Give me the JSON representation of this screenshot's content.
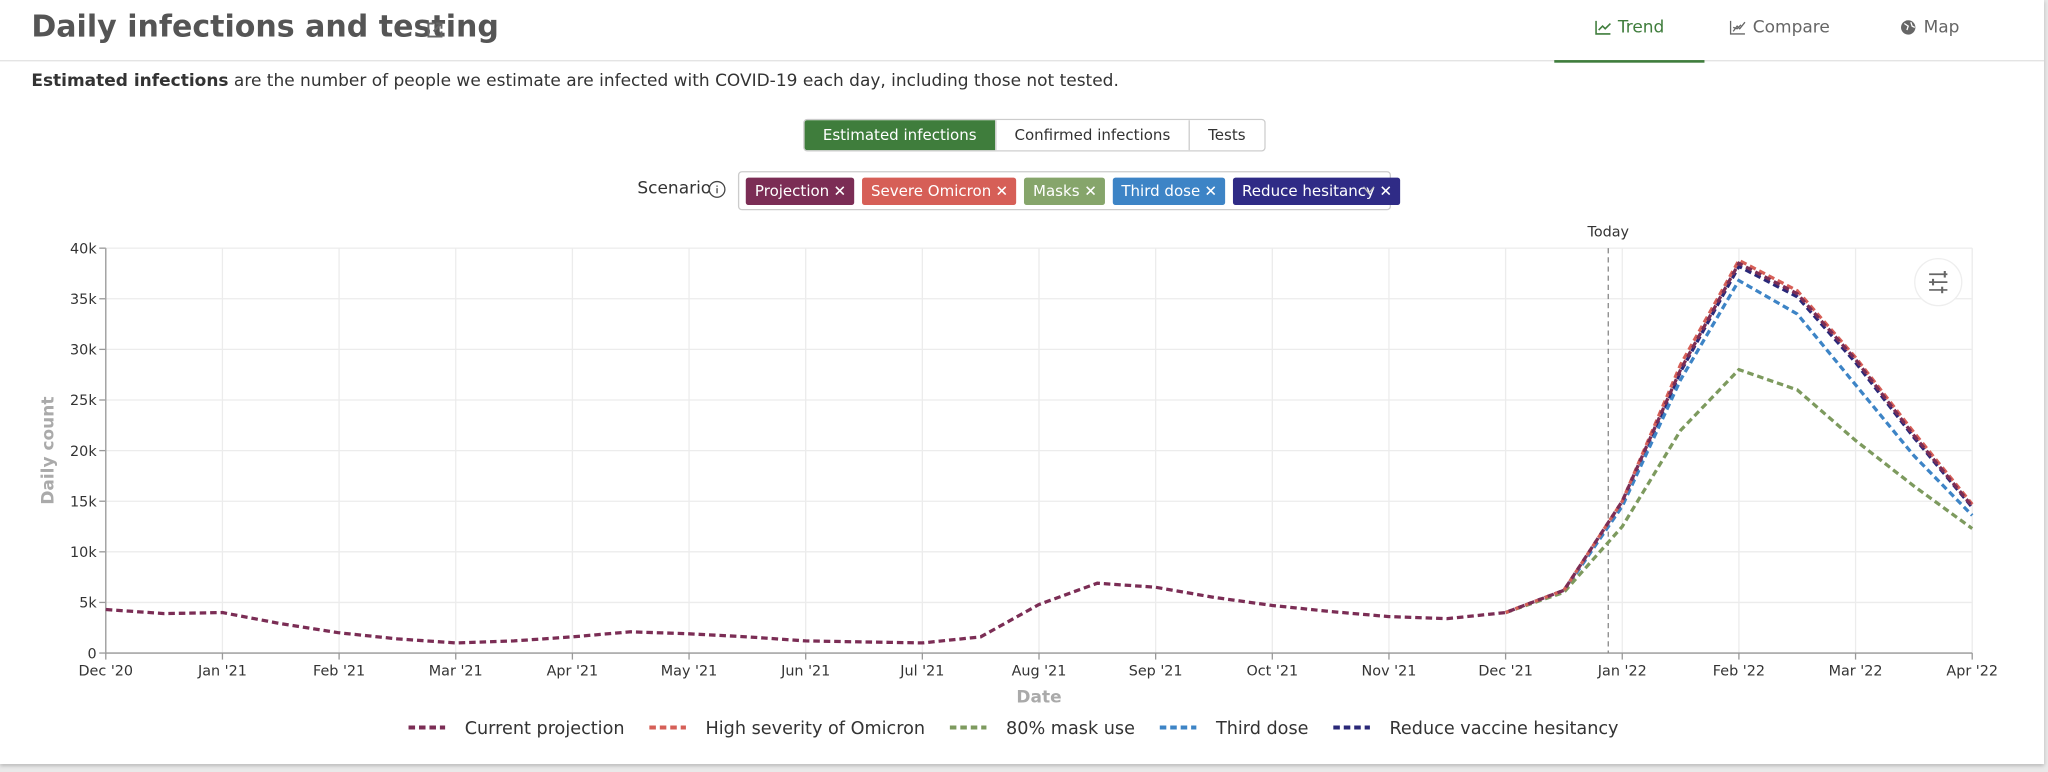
{
  "header": {
    "title": "Daily infections and testing",
    "tabs": [
      "Trend",
      "Compare",
      "Map"
    ],
    "active_tab": 0
  },
  "description": {
    "bold": "Estimated infections",
    "text": "are the number of people we estimate are infected with COVID-19 each day, including those not tested."
  },
  "metric_buttons": {
    "options": [
      "Estimated infections",
      "Confirmed infections",
      "Tests"
    ],
    "active": 0
  },
  "scenario": {
    "label": "Scenario",
    "chips": [
      {
        "label": "Projection",
        "color": "#7b2d55"
      },
      {
        "label": "Severe Omicron",
        "color": "#d65f57"
      },
      {
        "label": "Masks",
        "color": "#86a56b"
      },
      {
        "label": "Third dose",
        "color": "#3d84c6"
      },
      {
        "label": "Reduce hesitancy",
        "color": "#2f2b86"
      }
    ]
  },
  "chart_data": {
    "type": "line",
    "x_label": "Date",
    "y_label": "Daily count",
    "grid": true,
    "line_style": "dashed",
    "x": [
      0,
      0.5,
      1,
      1.5,
      2,
      2.5,
      3,
      3.5,
      4,
      4.5,
      5,
      5.5,
      6,
      6.5,
      7,
      7.5,
      8,
      8.5,
      9,
      9.5,
      10,
      10.5,
      11,
      11.5,
      12,
      12.5,
      13,
      13.5,
      14,
      14.5,
      15,
      15.5,
      16
    ],
    "xlim": [
      0,
      16
    ],
    "xticks": [
      {
        "value": 0,
        "label": "Dec '20"
      },
      {
        "value": 1,
        "label": "Jan '21"
      },
      {
        "value": 2,
        "label": "Feb '21"
      },
      {
        "value": 3,
        "label": "Mar '21"
      },
      {
        "value": 4,
        "label": "Apr '21"
      },
      {
        "value": 5,
        "label": "May '21"
      },
      {
        "value": 6,
        "label": "Jun '21"
      },
      {
        "value": 7,
        "label": "Jul '21"
      },
      {
        "value": 8,
        "label": "Aug '21"
      },
      {
        "value": 9,
        "label": "Sep '21"
      },
      {
        "value": 10,
        "label": "Oct '21"
      },
      {
        "value": 11,
        "label": "Nov '21"
      },
      {
        "value": 12,
        "label": "Dec '21"
      },
      {
        "value": 13,
        "label": "Jan '22"
      },
      {
        "value": 14,
        "label": "Feb '22"
      },
      {
        "value": 15,
        "label": "Mar '22"
      },
      {
        "value": 16,
        "label": "Apr '22"
      }
    ],
    "ylim": [
      0,
      40000
    ],
    "yticks": [
      0,
      {
        "value": 5000,
        "label": "5k"
      },
      {
        "value": 10000,
        "label": "10k"
      },
      {
        "value": 15000,
        "label": "15k"
      },
      {
        "value": 20000,
        "label": "20k"
      },
      {
        "value": 25000,
        "label": "25k"
      },
      {
        "value": 30000,
        "label": "30k"
      },
      {
        "value": 35000,
        "label": "35k"
      },
      {
        "value": 40000,
        "label": "40k"
      }
    ],
    "annotation": {
      "x": 12.88,
      "label": "Today"
    },
    "series": [
      {
        "name": "Current projection",
        "color": "#7b2d55",
        "values": [
          4300,
          3900,
          4000,
          2900,
          2000,
          1400,
          1000,
          1200,
          1600,
          2100,
          1900,
          1600,
          1200,
          1100,
          1000,
          1600,
          4800,
          6900,
          6500,
          5500,
          4700,
          4100,
          3600,
          3400,
          4000,
          6200,
          15000,
          28000,
          38500,
          35500,
          29000,
          21500,
          14500
        ]
      },
      {
        "name": "High severity of Omicron",
        "color": "#d65f57",
        "values": [
          null,
          null,
          null,
          null,
          null,
          null,
          null,
          null,
          null,
          null,
          null,
          null,
          null,
          null,
          null,
          null,
          null,
          null,
          null,
          null,
          null,
          null,
          null,
          null,
          4000,
          6200,
          15000,
          28500,
          38800,
          35800,
          29200,
          21800,
          14700
        ]
      },
      {
        "name": "80% mask use",
        "color": "#7d9a5e",
        "values": [
          null,
          null,
          null,
          null,
          null,
          null,
          null,
          null,
          null,
          null,
          null,
          null,
          null,
          null,
          null,
          null,
          null,
          null,
          null,
          null,
          null,
          null,
          null,
          null,
          4000,
          6000,
          12500,
          22000,
          28000,
          26000,
          21000,
          16500,
          12300
        ]
      },
      {
        "name": "Third dose",
        "color": "#3d84c6",
        "values": [
          null,
          null,
          null,
          null,
          null,
          null,
          null,
          null,
          null,
          null,
          null,
          null,
          null,
          null,
          null,
          null,
          null,
          null,
          null,
          null,
          null,
          null,
          null,
          null,
          4000,
          6100,
          14500,
          27000,
          36800,
          33500,
          26500,
          19500,
          13600
        ]
      },
      {
        "name": "Reduce vaccine hesitancy",
        "color": "#2a2878",
        "values": [
          null,
          null,
          null,
          null,
          null,
          null,
          null,
          null,
          null,
          null,
          null,
          null,
          null,
          null,
          null,
          null,
          null,
          null,
          null,
          null,
          null,
          null,
          null,
          null,
          4000,
          6200,
          14800,
          27800,
          38200,
          35200,
          28700,
          21300,
          14400
        ]
      }
    ]
  }
}
